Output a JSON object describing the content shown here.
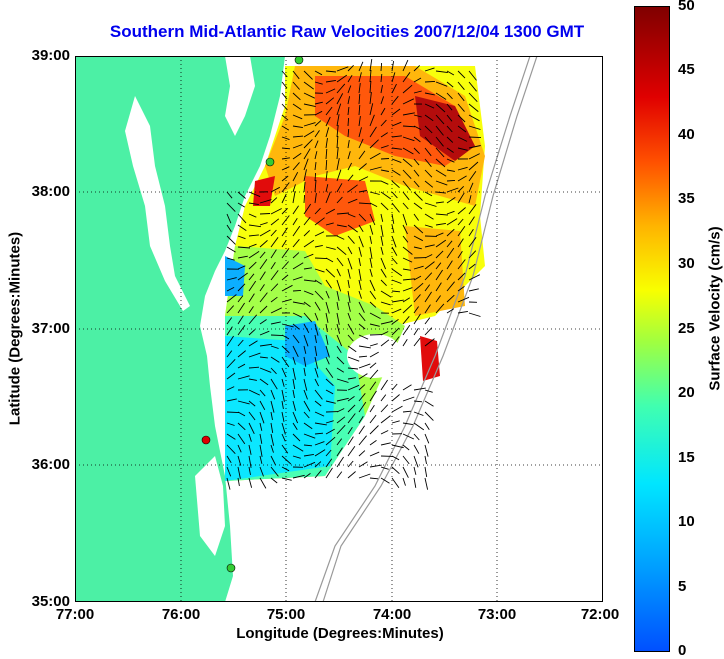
{
  "title": "Southern Mid-Atlantic Raw Velocities 2007/12/04 1300 GMT",
  "axes": {
    "xlabel": "Longitude (Degrees:Minutes)",
    "ylabel": "Latitude (Degrees:Minutes)",
    "x_ticks": [
      "77:00",
      "76:00",
      "75:00",
      "74:00",
      "73:00",
      "72:00"
    ],
    "y_ticks": [
      "39:00",
      "38:00",
      "37:00",
      "36:00",
      "35:00"
    ]
  },
  "colorbar": {
    "label": "Surface Velocity (cm/s)",
    "ticks": [
      "50",
      "45",
      "40",
      "35",
      "30",
      "25",
      "20",
      "15",
      "10",
      "5",
      "0"
    ],
    "colors": [
      "#0050ff",
      "#00aaff",
      "#00e6ff",
      "#40ffb0",
      "#a0ff40",
      "#f8ff00",
      "#ffb400",
      "#ff5000",
      "#e00000",
      "#800000"
    ]
  },
  "colors": {
    "land": "#4cf0a5",
    "title": "#0000ee",
    "station_green": "#33cc33",
    "station_red": "#dd0000"
  }
}
